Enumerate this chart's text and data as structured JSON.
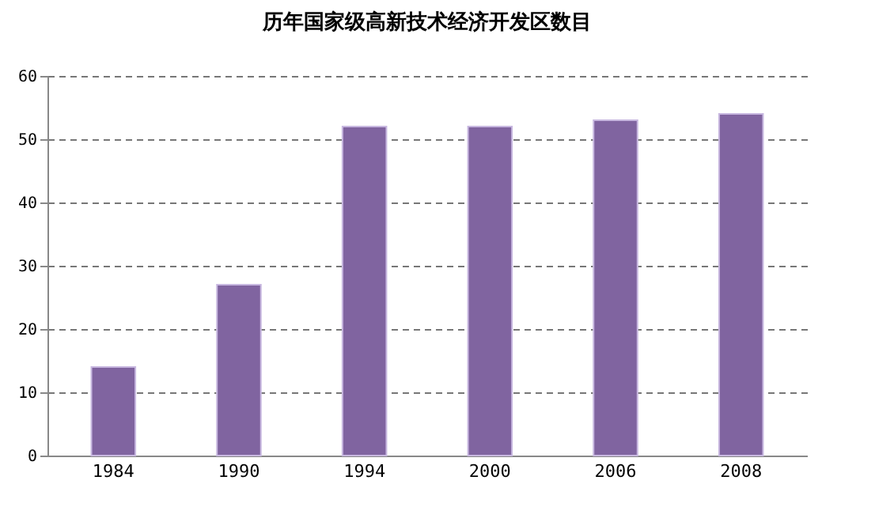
{
  "chart_data": {
    "type": "bar",
    "title": "历年国家级高新技术经济开发区数目",
    "categories": [
      "1984",
      "1990",
      "1994",
      "2000",
      "2006",
      "2008"
    ],
    "values": [
      14,
      27,
      52,
      52,
      53,
      54
    ],
    "color": "#8064a0",
    "ylim": [
      0,
      60
    ],
    "yticks": [
      0,
      10,
      20,
      30,
      40,
      50,
      60
    ],
    "grid": "y"
  }
}
